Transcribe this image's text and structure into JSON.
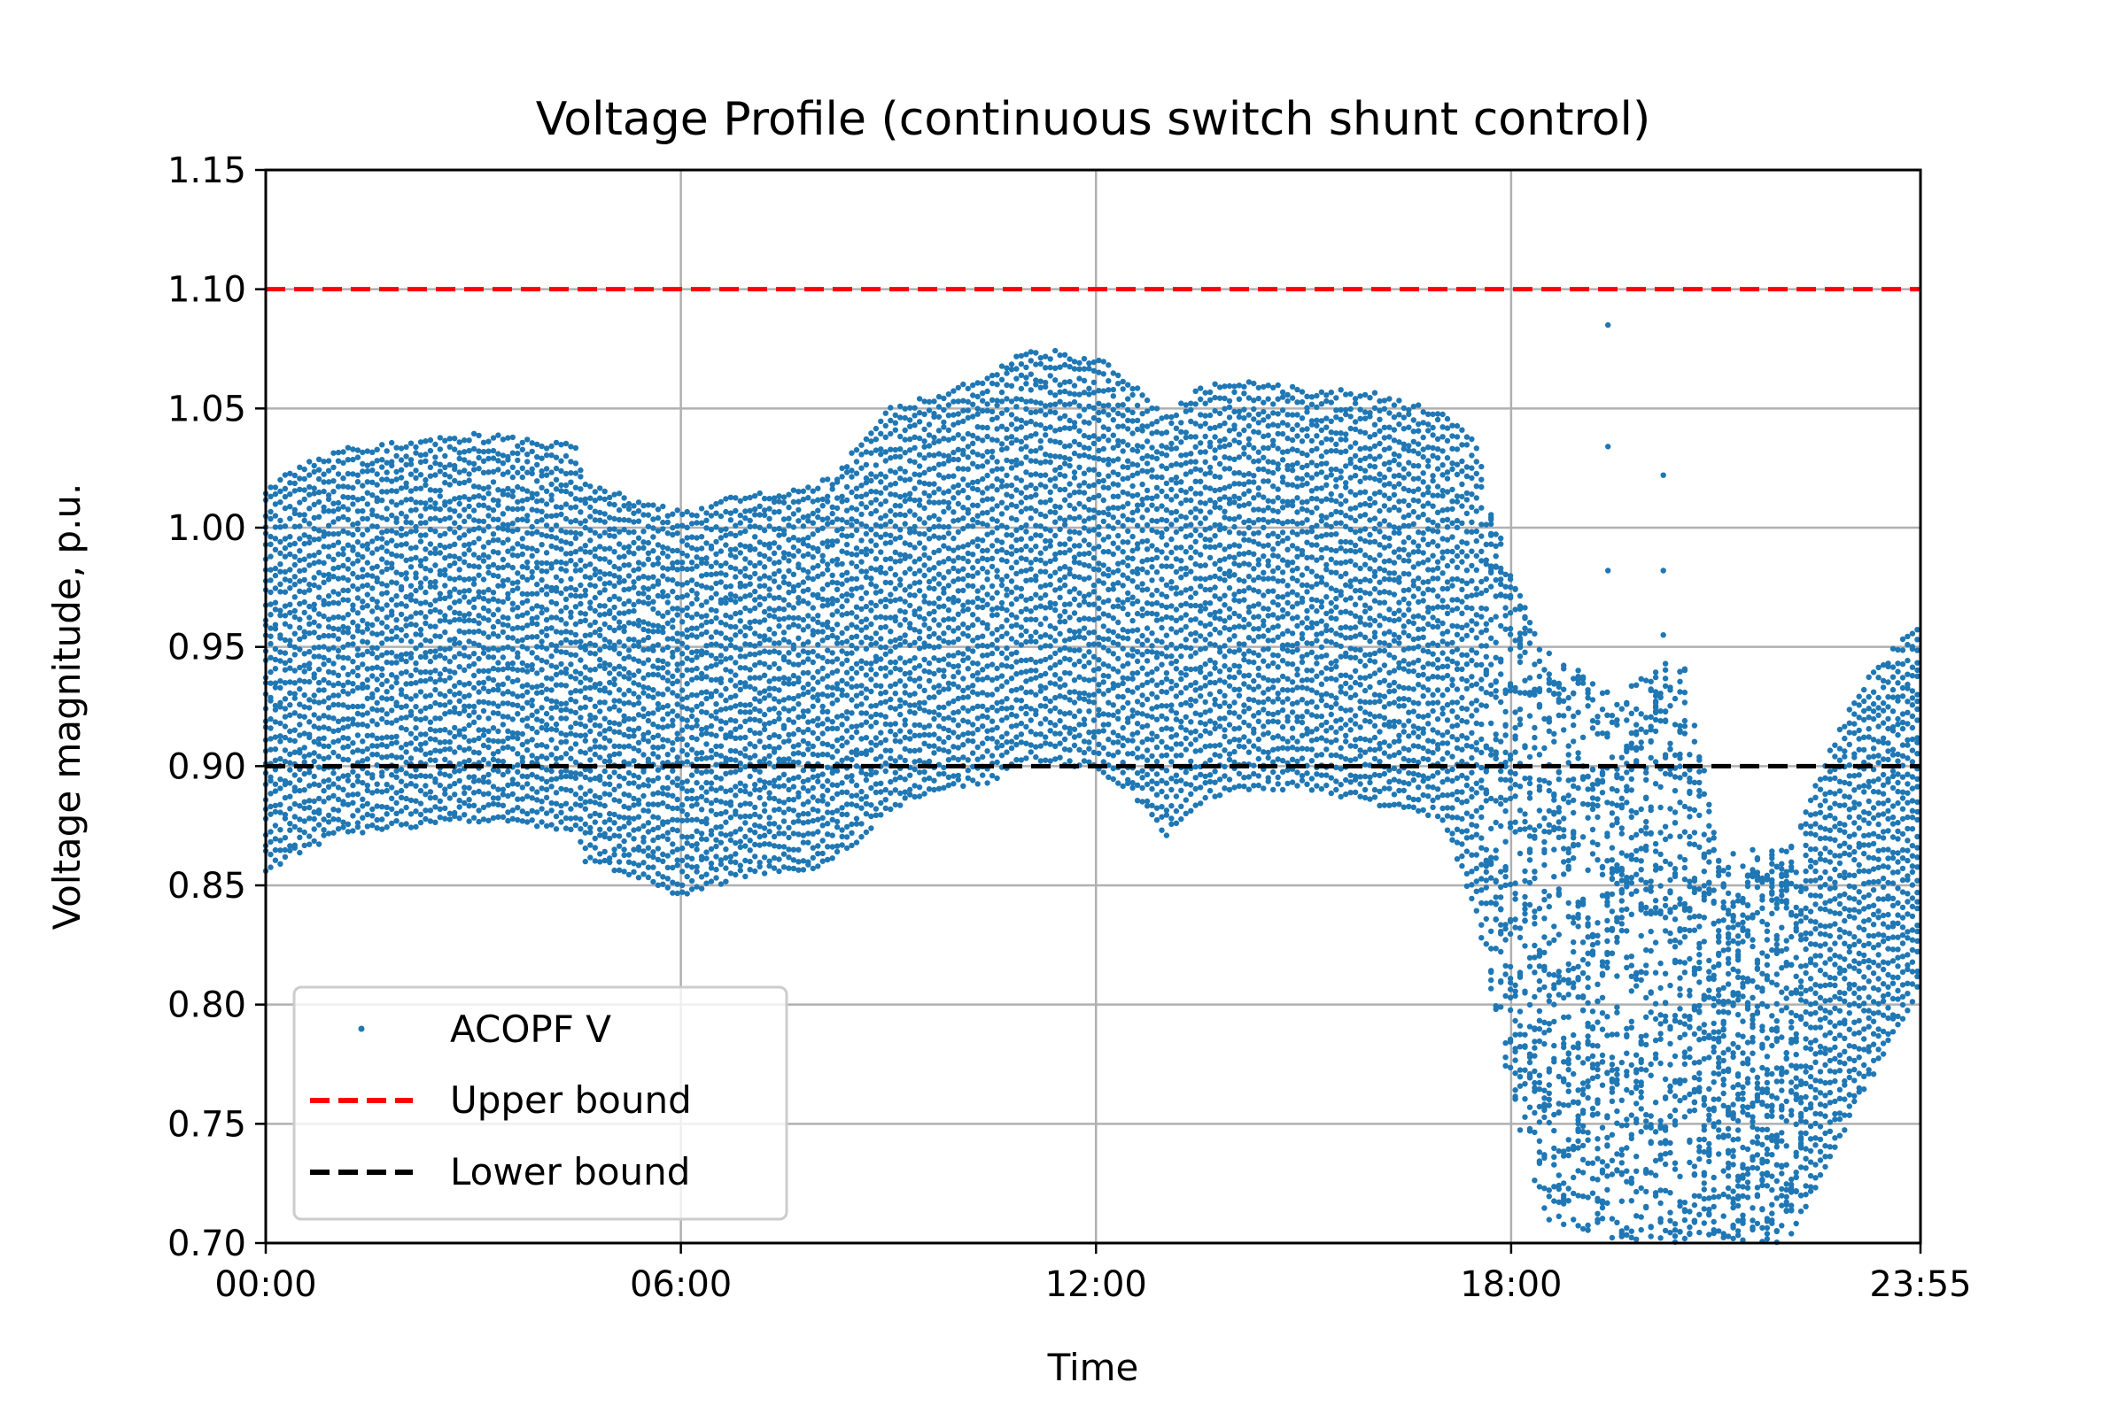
{
  "chart_data": {
    "type": "scatter",
    "title": "Voltage Profile (continuous switch shunt control)",
    "xlabel": "Time",
    "ylabel": "Voltage magnitude, p.u.",
    "x_unit": "hours",
    "xlim": [
      0,
      23.9167
    ],
    "ylim": [
      0.7,
      1.15
    ],
    "x_ticks": [
      {
        "value": 0,
        "label": "00:00"
      },
      {
        "value": 6,
        "label": "06:00"
      },
      {
        "value": 12,
        "label": "12:00"
      },
      {
        "value": 18,
        "label": "18:00"
      },
      {
        "value": 23.9167,
        "label": "23:55"
      }
    ],
    "y_ticks": [
      {
        "value": 0.7,
        "label": "0.70"
      },
      {
        "value": 0.75,
        "label": "0.75"
      },
      {
        "value": 0.8,
        "label": "0.80"
      },
      {
        "value": 0.85,
        "label": "0.85"
      },
      {
        "value": 0.9,
        "label": "0.90"
      },
      {
        "value": 0.95,
        "label": "0.95"
      },
      {
        "value": 1.0,
        "label": "1.00"
      },
      {
        "value": 1.05,
        "label": "1.05"
      },
      {
        "value": 1.1,
        "label": "1.10"
      },
      {
        "value": 1.15,
        "label": "1.15"
      }
    ],
    "grid": true,
    "legend_position": "lower-left",
    "colors": {
      "scatter": "#1f77b4",
      "upper": "#ff0000",
      "lower": "#000000",
      "grid": "#b0b0b0"
    },
    "legend": [
      "ACOPF V",
      "Upper bound",
      "Lower bound"
    ],
    "reference_lines": [
      {
        "name": "Upper bound",
        "y": 1.1,
        "style": "dashed",
        "color": "#ff0000"
      },
      {
        "name": "Lower bound",
        "y": 0.9,
        "style": "dashed",
        "color": "#000000"
      }
    ],
    "series": [
      {
        "name": "ACOPF V",
        "envelope_top": [
          [
            0,
            1.015
          ],
          [
            0.5,
            1.025
          ],
          [
            1,
            1.031
          ],
          [
            2,
            1.035
          ],
          [
            3,
            1.038
          ],
          [
            4,
            1.035
          ],
          [
            4.5,
            1.033
          ],
          [
            4.6,
            1.018
          ],
          [
            5,
            1.014
          ],
          [
            6,
            1.005
          ],
          [
            7,
            1.013
          ],
          [
            7.9,
            1.016
          ],
          [
            8.2,
            1.02
          ],
          [
            9,
            1.048
          ],
          [
            10,
            1.058
          ],
          [
            10.5,
            1.064
          ],
          [
            11,
            1.074
          ],
          [
            12,
            1.07
          ],
          [
            12.5,
            1.06
          ],
          [
            13,
            1.045
          ],
          [
            13.5,
            1.057
          ],
          [
            14,
            1.06
          ],
          [
            15,
            1.057
          ],
          [
            16,
            1.055
          ],
          [
            17,
            1.048
          ],
          [
            17.5,
            1.035
          ],
          [
            18,
            0.98
          ],
          [
            18.5,
            0.95
          ],
          [
            19.5,
            0.93
          ],
          [
            20.5,
            0.95
          ],
          [
            21,
            0.865
          ],
          [
            22,
            0.865
          ],
          [
            23,
            0.93
          ],
          [
            23.9,
            0.96
          ]
        ],
        "envelope_bottom": [
          [
            0,
            0.858
          ],
          [
            0.5,
            0.865
          ],
          [
            1,
            0.872
          ],
          [
            2,
            0.876
          ],
          [
            3,
            0.878
          ],
          [
            4,
            0.876
          ],
          [
            4.5,
            0.874
          ],
          [
            4.6,
            0.862
          ],
          [
            5,
            0.858
          ],
          [
            6,
            0.847
          ],
          [
            7,
            0.856
          ],
          [
            7.9,
            0.857
          ],
          [
            8.5,
            0.868
          ],
          [
            9,
            0.883
          ],
          [
            10,
            0.893
          ],
          [
            10.5,
            0.895
          ],
          [
            11,
            0.905
          ],
          [
            12,
            0.9
          ],
          [
            12.5,
            0.89
          ],
          [
            13,
            0.872
          ],
          [
            13.5,
            0.886
          ],
          [
            14,
            0.892
          ],
          [
            15,
            0.892
          ],
          [
            16,
            0.886
          ],
          [
            17,
            0.88
          ],
          [
            17.5,
            0.84
          ],
          [
            18,
            0.76
          ],
          [
            18.5,
            0.71
          ],
          [
            19.5,
            0.7
          ],
          [
            20.5,
            0.7
          ],
          [
            21,
            0.7
          ],
          [
            22,
            0.7
          ],
          [
            23,
            0.76
          ],
          [
            23.9,
            0.808
          ]
        ],
        "outliers": [
          [
            19.4,
            1.085
          ],
          [
            19.4,
            1.034
          ],
          [
            20.2,
            1.022
          ],
          [
            19.4,
            0.982
          ],
          [
            20.2,
            0.982
          ],
          [
            20.2,
            0.955
          ]
        ]
      }
    ]
  }
}
